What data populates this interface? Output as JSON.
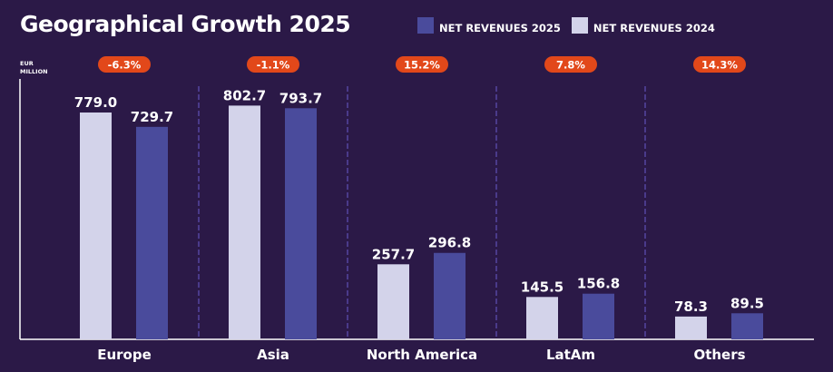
{
  "colors": {
    "background": "#2b1947",
    "series_2025": "#4a4b9c",
    "series_2024": "#d3d3ea",
    "pill": "#e2481a",
    "separator": "#4a3a8a"
  },
  "chart_data": {
    "type": "bar",
    "title": "Geographical Growth 2025",
    "ylabel": "EUR MILLION",
    "ylabel_lines": [
      "EUR",
      "MILLION"
    ],
    "xlabel": "",
    "categories": [
      "Europe",
      "Asia",
      "North America",
      "LatAm",
      "Others"
    ],
    "series": [
      {
        "name": "NET REVENUES 2024",
        "values": [
          779.0,
          802.7,
          257.7,
          145.5,
          78.3
        ]
      },
      {
        "name": "NET REVENUES 2025",
        "values": [
          729.7,
          793.7,
          296.8,
          156.8,
          89.5
        ]
      }
    ],
    "value_labels_2024": [
      "779.0",
      "802.7",
      "257.7",
      "145.5",
      "78.3"
    ],
    "value_labels_2025": [
      "729.7",
      "793.7",
      "296.8",
      "156.8",
      "89.5"
    ],
    "growth": [
      "-6.3%",
      "-1.1%",
      "15.2%",
      "7.8%",
      "14.3%"
    ],
    "ylim": [
      0,
      880
    ],
    "grid": false,
    "legend_placement": "top-right"
  }
}
